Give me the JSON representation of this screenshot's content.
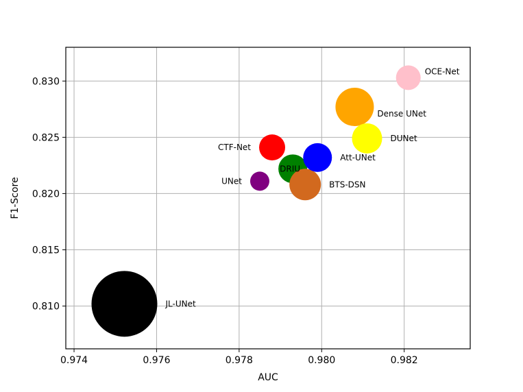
{
  "chart_data": {
    "type": "scatter",
    "title": "",
    "xlabel": "AUC",
    "ylabel": "F1-Score",
    "xlim": [
      0.9738,
      0.9836
    ],
    "ylim": [
      0.8062,
      0.833
    ],
    "grid": true,
    "x_ticks": [
      0.974,
      0.976,
      0.978,
      0.98,
      0.982
    ],
    "x_tick_labels": [
      "0.974",
      "0.976",
      "0.978",
      "0.980",
      "0.982"
    ],
    "y_ticks": [
      0.81,
      0.815,
      0.82,
      0.825,
      0.83
    ],
    "y_tick_labels": [
      "0.810",
      "0.815",
      "0.820",
      "0.825",
      "0.830"
    ],
    "points": [
      {
        "label": "JL-UNet",
        "x": 0.97522,
        "y": 0.8102,
        "size": 48,
        "color": "#000000",
        "label_pos": "right"
      },
      {
        "label": "UNet",
        "x": 0.9785,
        "y": 0.8211,
        "size": 14,
        "color": "#800080",
        "label_pos": "left"
      },
      {
        "label": "CTF-Net",
        "x": 0.9788,
        "y": 0.8241,
        "size": 19,
        "color": "#ff0000",
        "label_pos": "left"
      },
      {
        "label": "DRIU",
        "x": 0.9793,
        "y": 0.8222,
        "size": 21,
        "color": "#008000",
        "label_pos": "center"
      },
      {
        "label": "BTS-DSN",
        "x": 0.9796,
        "y": 0.8208,
        "size": 23,
        "color": "#d2691e",
        "label_pos": "right"
      },
      {
        "label": "Att-UNet",
        "x": 0.9799,
        "y": 0.8232,
        "size": 21,
        "color": "#0000ff",
        "label_pos": "right"
      },
      {
        "label": "Dense UNet",
        "x": 0.9808,
        "y": 0.8277,
        "size": 28,
        "color": "#ffa500",
        "label_pos": "right-below"
      },
      {
        "label": "DUNet",
        "x": 0.9811,
        "y": 0.8249,
        "size": 22,
        "color": "#ffff00",
        "label_pos": "right"
      },
      {
        "label": "OCE-Net",
        "x": 0.9821,
        "y": 0.8303,
        "size": 18,
        "color": "#ffc0cb",
        "label_pos": "right-above"
      }
    ]
  }
}
